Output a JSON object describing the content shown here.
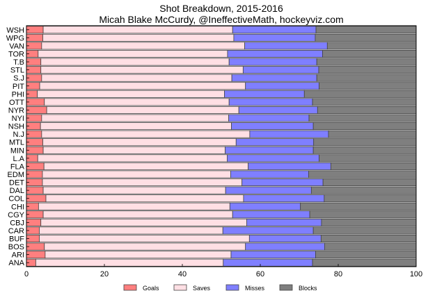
{
  "chart_data": {
    "type": "bar",
    "orientation": "horizontal",
    "stacked": true,
    "title": "Shot Breakdown, 2015-2016",
    "subtitle": "Micah Blake McCurdy, @IneffectiveMath, hockeyviz.com",
    "xlabel": "",
    "ylabel": "",
    "xlim": [
      0,
      100
    ],
    "xticks": [
      "0",
      "20",
      "40",
      "60",
      "80",
      "100"
    ],
    "legend_position": "bottom",
    "categories": [
      "WSH",
      "WPG",
      "VAN",
      "TOR",
      "T.B",
      "STL",
      "S.J",
      "PIT",
      "PHI",
      "OTT",
      "NYR",
      "NYI",
      "NSH",
      "N.J",
      "MTL",
      "MIN",
      "L.A",
      "FLA",
      "EDM",
      "DET",
      "DAL",
      "COL",
      "CHI",
      "CGY",
      "CBJ",
      "CAR",
      "BUF",
      "BOS",
      "ARI",
      "ANA"
    ],
    "series": [
      {
        "name": "Goals",
        "color": "#ff7f7f",
        "values": [
          4.3,
          4.2,
          3.9,
          3.0,
          3.7,
          3.7,
          3.9,
          3.4,
          2.8,
          4.6,
          5.2,
          3.9,
          3.6,
          3.9,
          4.2,
          4.3,
          2.9,
          4.5,
          4.1,
          4.1,
          4.3,
          5.0,
          3.1,
          4.3,
          3.7,
          3.3,
          3.3,
          4.6,
          4.8,
          2.4
        ]
      },
      {
        "name": "Saves",
        "color": "#ffdfe4",
        "values": [
          48.6,
          49.0,
          52.1,
          48.6,
          48.3,
          51.9,
          48.8,
          52.8,
          48.0,
          47.4,
          49.3,
          48.0,
          49.0,
          53.4,
          49.6,
          46.7,
          48.6,
          52.4,
          48.3,
          51.2,
          46.8,
          50.7,
          49.1,
          48.6,
          52.8,
          47.1,
          53.9,
          51.6,
          47.7,
          48.1
        ]
      },
      {
        "name": "Misses",
        "color": "#7f7fff",
        "values": [
          21.4,
          20.9,
          21.2,
          24.4,
          22.5,
          19.4,
          21.8,
          18.9,
          20.5,
          21.4,
          20.2,
          20.6,
          21.0,
          20.2,
          19.9,
          22.6,
          23.6,
          21.2,
          20.0,
          20.8,
          22.0,
          20.7,
          18.1,
          19.8,
          19.2,
          23.2,
          18.4,
          20.3,
          21.7,
          22.9
        ]
      },
      {
        "name": "Blocks",
        "color": "#7f7f7f",
        "values": [
          25.7,
          25.9,
          22.8,
          24.0,
          25.5,
          25.0,
          25.5,
          24.9,
          28.7,
          26.6,
          25.3,
          27.5,
          26.4,
          22.5,
          26.3,
          26.4,
          24.9,
          21.9,
          27.6,
          23.9,
          26.9,
          23.6,
          29.7,
          27.3,
          24.3,
          26.4,
          24.4,
          23.5,
          25.8,
          26.6
        ]
      }
    ]
  }
}
